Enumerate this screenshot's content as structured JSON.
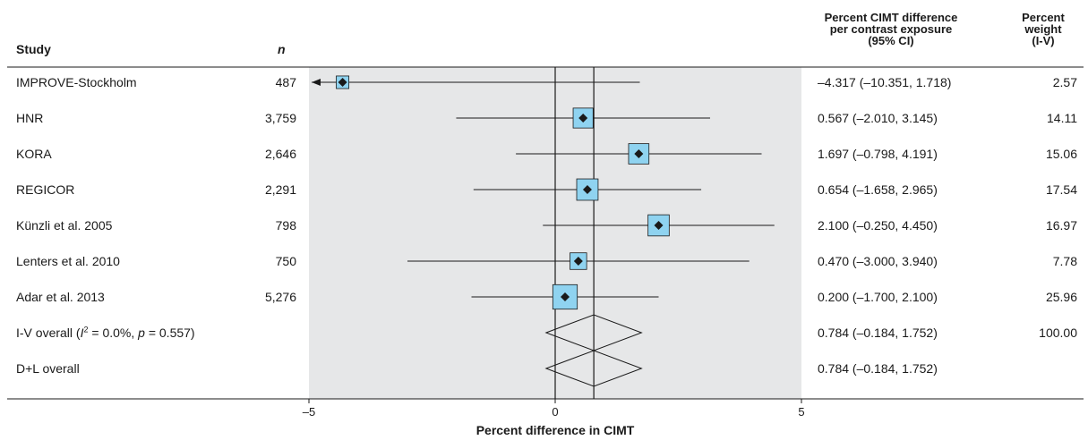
{
  "headers": {
    "study": "Study",
    "n": "n",
    "ci": [
      "Percent CIMT difference",
      "per contrast exposure",
      "(95% CI)"
    ],
    "weight": [
      "Percent",
      "weight",
      "(I-V)"
    ]
  },
  "chart_data": {
    "type": "forest",
    "xlabel": "Percent difference in CIMT",
    "xlim": [
      -5,
      5
    ],
    "xticks": [
      -5,
      0,
      5
    ],
    "xtick_labels": [
      "–5",
      "0",
      "5"
    ],
    "null_line": 0,
    "overall_line": 0.784,
    "studies": [
      {
        "study": "IMPROVE-Stockholm",
        "n": "487",
        "est": -4.317,
        "lo": -10.351,
        "hi": 1.718,
        "ci_text": "–4.317 (–10.351, 1.718)",
        "weight": "2.57",
        "wnum": 2.57
      },
      {
        "study": "HNR",
        "n": "3,759",
        "est": 0.567,
        "lo": -2.01,
        "hi": 3.145,
        "ci_text": "0.567 (–2.010, 3.145)",
        "weight": "14.11",
        "wnum": 14.11
      },
      {
        "study": "KORA",
        "n": "2,646",
        "est": 1.697,
        "lo": -0.798,
        "hi": 4.191,
        "ci_text": "1.697 (–0.798, 4.191)",
        "weight": "15.06",
        "wnum": 15.06
      },
      {
        "study": "REGICOR",
        "n": "2,291",
        "est": 0.654,
        "lo": -1.658,
        "hi": 2.965,
        "ci_text": "0.654 (–1.658, 2.965)",
        "weight": "17.54",
        "wnum": 17.54
      },
      {
        "study": "Künzli et al. 2005",
        "n": "798",
        "est": 2.1,
        "lo": -0.25,
        "hi": 4.45,
        "ci_text": "2.100 (–0.250, 4.450)",
        "weight": "16.97",
        "wnum": 16.97
      },
      {
        "study": "Lenters et al. 2010",
        "n": "750",
        "est": 0.47,
        "lo": -3.0,
        "hi": 3.94,
        "ci_text": "0.470 (–3.000, 3.940)",
        "weight": "7.78",
        "wnum": 7.78
      },
      {
        "study": "Adar et al. 2013",
        "n": "5,276",
        "est": 0.2,
        "lo": -1.7,
        "hi": 2.1,
        "ci_text": "0.200 (–1.700, 2.100)",
        "weight": "25.96",
        "wnum": 25.96
      }
    ],
    "overall": [
      {
        "label_parts": {
          "pre": "I-V overall (",
          "i": "I",
          "sup": "2",
          "mid": " = 0.0%, ",
          "p": "p",
          "post": " = 0.557)"
        },
        "est": 0.784,
        "lo": -0.184,
        "hi": 1.752,
        "ci_text": "0.784 (–0.184, 1.752)",
        "weight": "100.00"
      },
      {
        "label": "D+L overall",
        "est": 0.784,
        "lo": -0.184,
        "hi": 1.752,
        "ci_text": "0.784 (–0.184, 1.752)",
        "weight": ""
      }
    ],
    "colors": {
      "panel": "#e6e7e8",
      "box": "#8fd3f0",
      "line": "#1a1a1a"
    }
  }
}
